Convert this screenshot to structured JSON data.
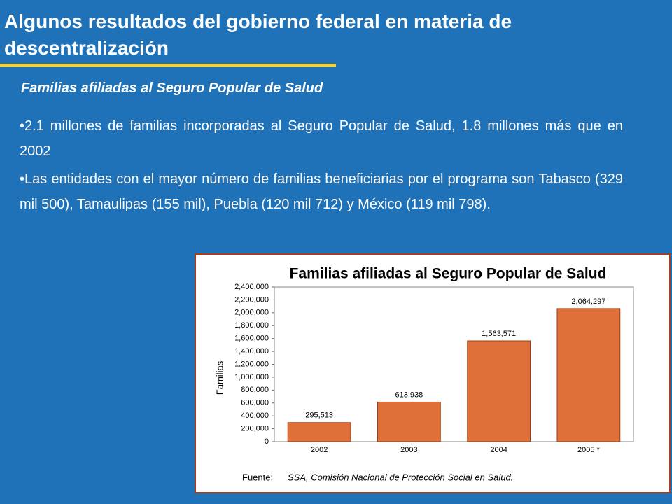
{
  "header": {
    "title": "Algunos resultados del gobierno federal en materia de descentralización"
  },
  "subtitle": "Familias afiliadas al Seguro Popular de Salud",
  "bullets": [
    "•2.1 millones de familias incorporadas al Seguro Popular de Salud, 1.8 millones más que en 2002",
    "•Las entidades con el mayor número de familias beneficiarias por el programa son Tabasco (329 mil 500), Tamaulipas (155 mil), Puebla (120 mil 712) y México (119 mil 798)."
  ],
  "chart_data": {
    "type": "bar",
    "title": "Familias afiliadas al Seguro Popular de Salud",
    "y_label": "Familias",
    "categories": [
      "2002",
      "2003",
      "2004",
      "2005 *"
    ],
    "values": [
      295513,
      613938,
      1563571,
      2064297
    ],
    "value_labels": [
      "295,513",
      "613,938",
      "1,563,571",
      "2,064,297"
    ],
    "color": "#e0703a",
    "ylim": [
      0,
      2400000
    ],
    "yticks": [
      0,
      {
        "value": 200000,
        "label": "200,000"
      },
      {
        "value": 400000,
        "label": "400,000"
      },
      {
        "value": 600000,
        "label": "600,000"
      },
      {
        "value": 800000,
        "label": "800,000"
      },
      {
        "value": 1000000,
        "label": "1,000,000"
      },
      {
        "value": 1200000,
        "label": "1,200,000"
      },
      {
        "value": 1400000,
        "label": "1,400,000"
      },
      {
        "value": 1600000,
        "label": "1,600,000"
      },
      {
        "value": 1800000,
        "label": "1,800,000"
      },
      {
        "value": 2000000,
        "label": "2,000,000"
      },
      {
        "value": 2200000,
        "label": "2,200,000"
      },
      {
        "value": 2400000,
        "label": "2,400,000"
      }
    ],
    "source_label": "Fuente:",
    "source": "SSA, Comisión Nacional de Protección Social en Salud."
  }
}
